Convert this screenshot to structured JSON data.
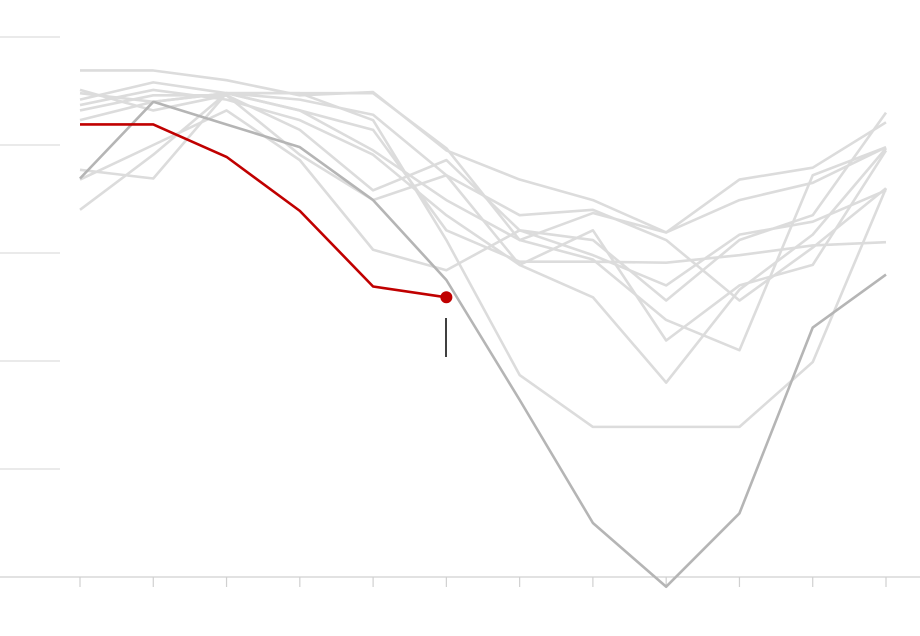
{
  "chart_data": {
    "type": "line",
    "categories": [
      null,
      null,
      null,
      null,
      null,
      null,
      null,
      null,
      null,
      null,
      null,
      null
    ],
    "ylim": [
      0,
      5
    ],
    "yticks": [
      1,
      2,
      3,
      4,
      5
    ],
    "grid": true,
    "series": [
      {
        "color": "#dcdcdc",
        "values": [
          4.69,
          4.69,
          4.6,
          4.46,
          4.49,
          3.95,
          3.68,
          3.49,
          3.19,
          3.68,
          3.79,
          4.21
        ]
      },
      {
        "color": "#dcdcdc",
        "values": [
          4.48,
          4.4,
          4.48,
          4.48,
          4.48,
          3.97,
          3.12,
          3.37,
          3.19,
          3.49,
          3.65,
          3.98
        ]
      },
      {
        "color": "#dcdcdc",
        "values": [
          4.42,
          4.58,
          4.48,
          4.32,
          4.14,
          3.21,
          2.92,
          2.92,
          2.91,
          2.98,
          3.07,
          3.1
        ]
      },
      {
        "color": "#dcdcdc",
        "values": [
          4.37,
          4.51,
          4.42,
          4.23,
          3.91,
          3.35,
          2.89,
          2.59,
          1.8,
          2.66,
          3.17,
          3.97
        ]
      },
      {
        "color": "#dcdcdc",
        "values": [
          4.32,
          4.46,
          4.46,
          4.14,
          3.58,
          3.86,
          3.21,
          3.12,
          2.56,
          3.12,
          3.35,
          4.3
        ]
      },
      {
        "color": "#dcdcdc",
        "values": [
          3.77,
          3.69,
          4.48,
          4.48,
          4.23,
          3.12,
          1.87,
          1.39,
          1.39,
          1.39,
          1.99,
          3.6
        ]
      },
      {
        "color": "#dcdcdc",
        "values": [
          3.4,
          3.91,
          4.48,
          4.32,
          3.95,
          3.49,
          3.12,
          2.94,
          2.38,
          2.1,
          3.72,
          3.98
        ]
      },
      {
        "color": "#dcdcdc",
        "values": [
          3.68,
          4.0,
          4.32,
          3.86,
          3.03,
          2.84,
          3.21,
          2.98,
          2.7,
          3.17,
          3.29,
          3.58
        ]
      },
      {
        "color": "#dcdcdc",
        "values": [
          4.23,
          4.4,
          4.48,
          4.42,
          4.28,
          3.72,
          2.89,
          3.21,
          2.19,
          2.7,
          2.89,
          3.95
        ]
      },
      {
        "color": "#dcdcdc",
        "values": [
          4.51,
          4.32,
          4.46,
          3.91,
          3.49,
          3.72,
          3.35,
          3.4,
          3.12,
          2.56,
          3.05,
          3.6
        ]
      },
      {
        "color": "#b5b5b5",
        "values": [
          3.69,
          4.4,
          4.19,
          3.98,
          3.49,
          2.75,
          1.64,
          0.5,
          -0.09,
          0.59,
          2.31,
          2.8
        ]
      },
      {
        "color": "#c00000",
        "values": [
          4.19,
          4.19,
          3.89,
          3.39,
          2.69,
          2.59,
          null,
          null,
          null,
          null,
          null,
          null
        ]
      }
    ]
  }
}
